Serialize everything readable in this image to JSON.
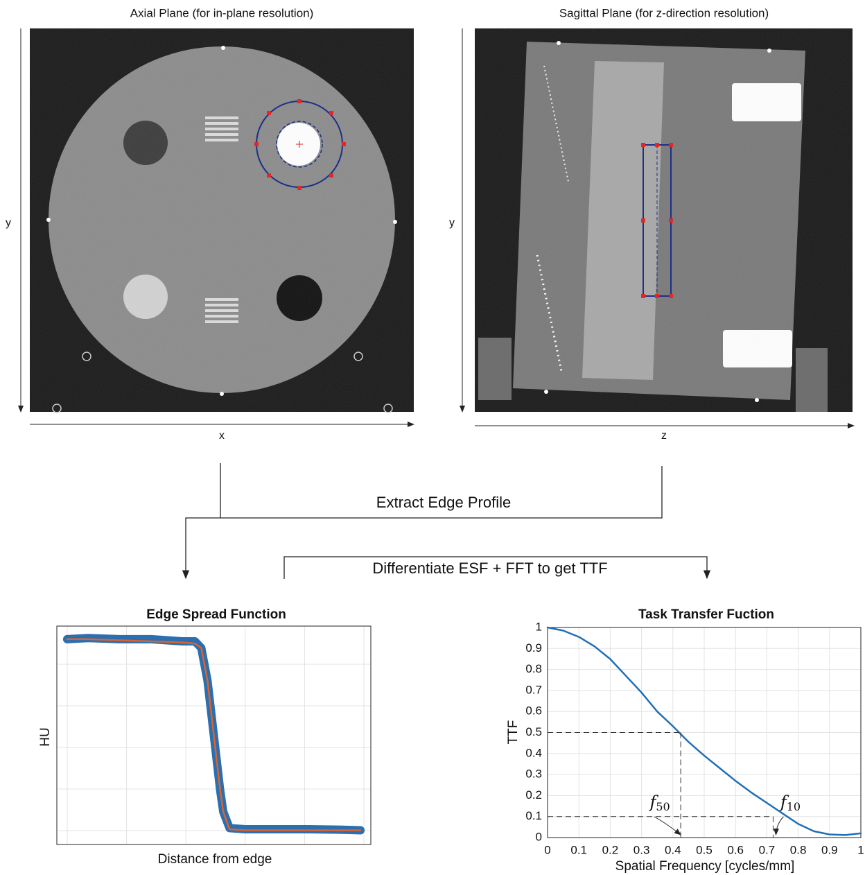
{
  "panels": {
    "axial": {
      "title": "Axial Plane (for in-plane resolution)",
      "x_axis": "x",
      "y_axis": "y"
    },
    "sagittal": {
      "title": "Sagittal Plane (for z-direction resolution)",
      "x_axis": "z",
      "y_axis": "y"
    }
  },
  "flow": {
    "step1": "Extract Edge Profile",
    "step2": "Differentiate ESF + FFT to get TTF"
  },
  "chart_data": [
    {
      "type": "line",
      "title": "Edge Spread Function",
      "xlabel": "Distance from edge",
      "ylabel": "HU",
      "xlim": [
        0,
        1
      ],
      "ylim": [
        0,
        1
      ],
      "grid": true,
      "x": [
        0.033,
        0.1,
        0.2,
        0.3,
        0.4,
        0.44,
        0.46,
        0.48,
        0.5,
        0.52,
        0.53,
        0.55,
        0.6,
        0.7,
        0.8,
        0.9,
        0.967
      ],
      "series": [
        {
          "color": "#2a6fb0",
          "values": [
            0.94,
            0.945,
            0.94,
            0.94,
            0.93,
            0.93,
            0.9,
            0.75,
            0.5,
            0.25,
            0.15,
            0.075,
            0.07,
            0.07,
            0.07,
            0.068,
            0.065
          ]
        },
        {
          "color": "#e0622a",
          "values": [
            0.94,
            0.94,
            0.935,
            0.93,
            0.925,
            0.92,
            0.9,
            0.75,
            0.5,
            0.25,
            0.15,
            0.07,
            0.065,
            0.065,
            0.065,
            0.065,
            0.065
          ]
        }
      ]
    },
    {
      "type": "line",
      "title": "Task Transfer Fuction",
      "xlabel": "Spatial Frequency [cycles/mm]",
      "ylabel": "TTF",
      "xlim": [
        0,
        1
      ],
      "ylim": [
        0,
        1
      ],
      "grid": true,
      "xticks": [
        0,
        0.1,
        0.2,
        0.3,
        0.4,
        0.5,
        0.6,
        0.7,
        0.8,
        0.9,
        1
      ],
      "yticks": [
        0,
        0.1,
        0.2,
        0.3,
        0.4,
        0.5,
        0.6,
        0.7,
        0.8,
        0.9,
        1
      ],
      "x": [
        0,
        0.05,
        0.1,
        0.15,
        0.2,
        0.25,
        0.3,
        0.35,
        0.4,
        0.45,
        0.5,
        0.55,
        0.6,
        0.65,
        0.7,
        0.75,
        0.8,
        0.85,
        0.9,
        0.95,
        1
      ],
      "series": [
        {
          "color": "#1f6fb8",
          "values": [
            1,
            0.985,
            0.955,
            0.91,
            0.85,
            0.77,
            0.69,
            0.6,
            0.53,
            0.455,
            0.39,
            0.33,
            0.27,
            0.215,
            0.165,
            0.115,
            0.065,
            0.03,
            0.015,
            0.012,
            0.02
          ]
        }
      ],
      "annotations": [
        {
          "text": "f",
          "subscript": "50",
          "x": 0.425,
          "y": 0.5
        },
        {
          "text": "f",
          "subscript": "10",
          "x": 0.72,
          "y": 0.1
        }
      ]
    }
  ]
}
